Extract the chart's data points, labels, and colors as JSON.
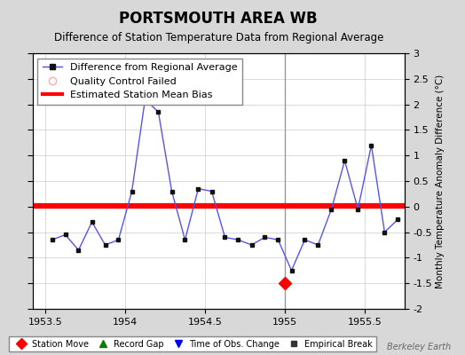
{
  "title": "PORTSMOUTH AREA WB",
  "subtitle": "Difference of Station Temperature Data from Regional Average",
  "ylabel_right": "Monthly Temperature Anomaly Difference (°C)",
  "xlim": [
    1953.42,
    1955.75
  ],
  "ylim": [
    -2.0,
    3.0
  ],
  "xticks": [
    1953.5,
    1954.0,
    1954.5,
    1955.0,
    1955.5
  ],
  "yticks": [
    -2.0,
    -1.5,
    -1.0,
    -0.5,
    0.0,
    0.5,
    1.0,
    1.5,
    2.0,
    2.5,
    3.0
  ],
  "mean_bias": 0.02,
  "mean_bias_color": "#ff0000",
  "line_color": "#5555ee",
  "marker_color": "#111111",
  "background_color": "#d8d8d8",
  "plot_bg_color": "#ffffff",
  "vertical_line_x": 1955.0,
  "vertical_line_color": "#999999",
  "station_move_x": 1955.0,
  "station_move_y": -1.5,
  "data_x": [
    1953.542,
    1953.625,
    1953.708,
    1953.792,
    1953.875,
    1953.958,
    1954.042,
    1954.125,
    1954.208,
    1954.292,
    1954.375,
    1954.458,
    1954.542,
    1954.625,
    1954.708,
    1954.792,
    1954.875,
    1954.958,
    1955.042,
    1955.125,
    1955.208,
    1955.292,
    1955.375,
    1955.458,
    1955.542,
    1955.625,
    1955.708
  ],
  "data_y": [
    -0.65,
    -0.55,
    -0.85,
    -0.3,
    -0.75,
    -0.65,
    0.3,
    2.1,
    1.85,
    0.3,
    -0.65,
    0.35,
    0.3,
    -0.6,
    -0.65,
    -0.75,
    -0.6,
    -0.65,
    -1.25,
    -0.65,
    -0.75,
    -0.05,
    0.9,
    -0.05,
    1.2,
    -0.5,
    -0.25
  ],
  "title_fontsize": 12,
  "subtitle_fontsize": 8.5,
  "tick_fontsize": 8,
  "legend_fontsize": 8,
  "watermark": "Berkeley Earth",
  "grid_color": "#cccccc",
  "xtick_labels": [
    "1953.5",
    "1954",
    "1954.5",
    "1955",
    "1955.5"
  ]
}
